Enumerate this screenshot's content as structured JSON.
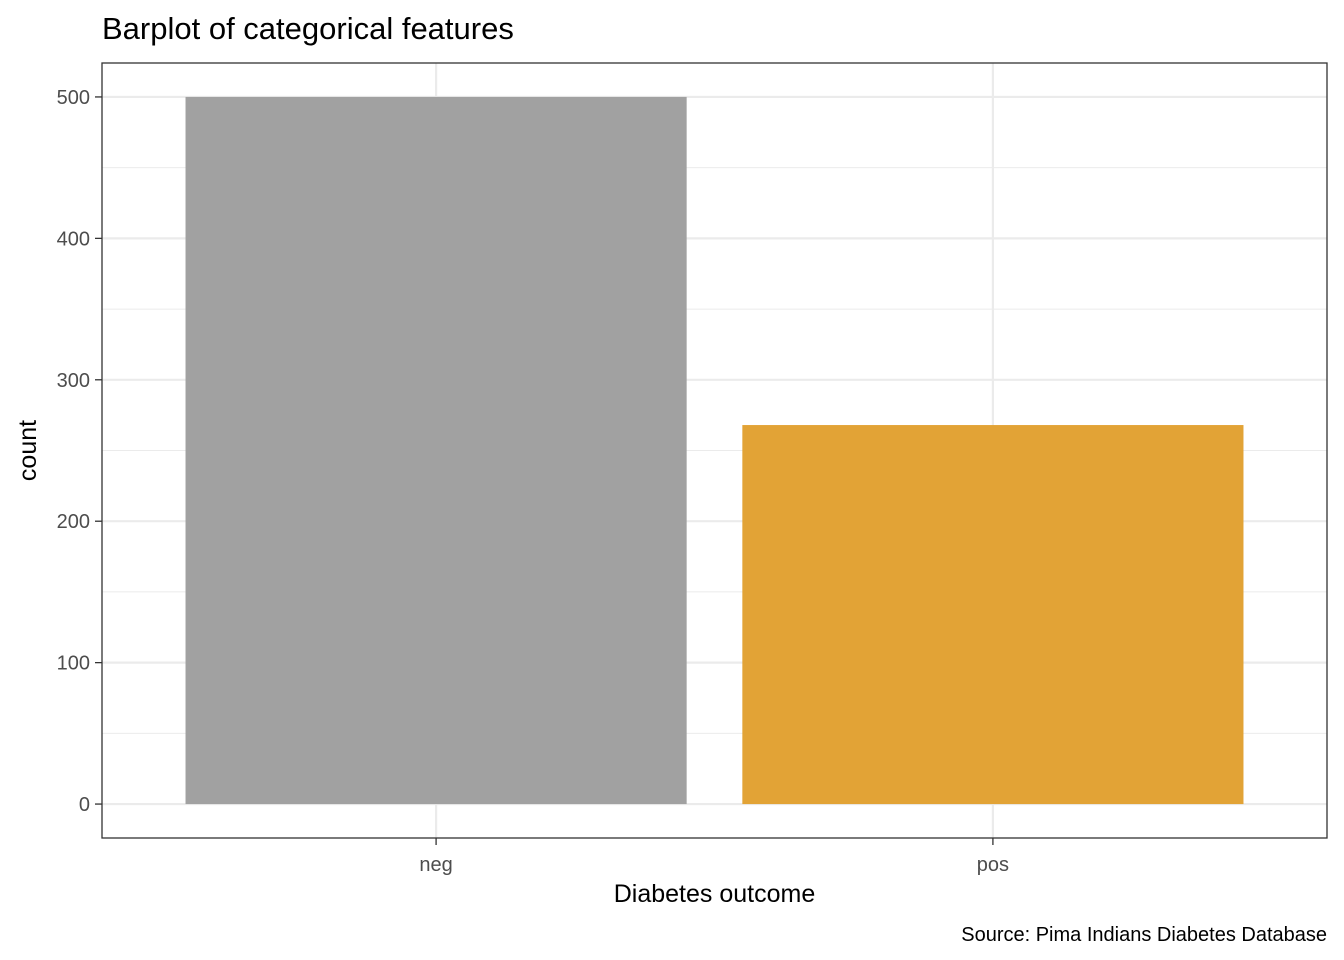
{
  "chart_data": {
    "type": "bar",
    "title": "Barplot of categorical features",
    "xlabel": "Diabetes outcome",
    "ylabel": "count",
    "caption": "Source: Pima Indians Diabetes Database",
    "categories": [
      "neg",
      "pos"
    ],
    "values": [
      500,
      268
    ],
    "colors": [
      "#9e9e9e",
      "#e1a030"
    ],
    "ylim": [
      -24,
      524
    ],
    "yticks": [
      0,
      100,
      200,
      300,
      400,
      500
    ],
    "ytick_labels": [
      "0",
      "100",
      "200",
      "300",
      "400",
      "500"
    ],
    "grid": true,
    "legend": "none"
  }
}
